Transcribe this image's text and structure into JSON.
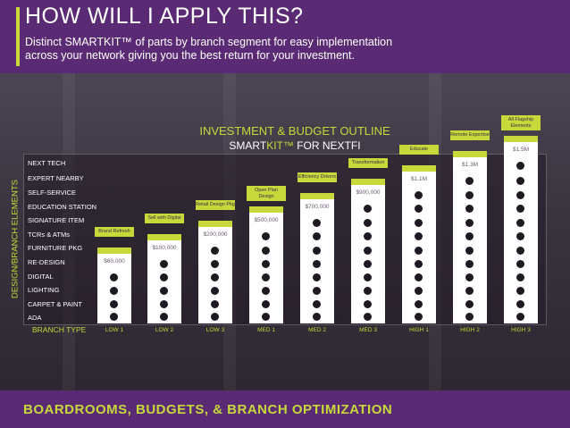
{
  "header": {
    "title": "HOW WILL I APPLY THIS?",
    "subtitle_line1": "Distinct SMARTKIT™ of parts by branch segment for easy implementation",
    "subtitle_line2": "across your network giving you the best return for your investment."
  },
  "outline": {
    "title": "INVESTMENT & BUDGET OUTLINE",
    "subtitle_prefix": "SMART",
    "subtitle_highlight": "KIT™",
    "subtitle_suffix": " FOR NEXTFI"
  },
  "axis_label": "DESIGN/BRANCH ELEMENTS",
  "branch_type_label": "BRANCH TYPE",
  "rows": [
    "NEXT TECH",
    "EXPERT NEARBY",
    "SELF-SERVICE",
    "EDUCATION STATION",
    "SIGNATURE ITEM",
    "TCRs & ATMs",
    "FURNITURE PKG",
    "RE-DESIGN",
    "DIGITAL",
    "LIGHTING",
    "CARPET & PAINT",
    "ADA"
  ],
  "columns": [
    {
      "label": "LOW 1",
      "amount": "$60,000",
      "tag": "Brand Refresh",
      "levels": 4
    },
    {
      "label": "LOW 2",
      "amount": "$100,000",
      "tag": "Sell with Digital",
      "levels": 5
    },
    {
      "label": "LOW 3",
      "amount": "$200,000",
      "tag": "Retail Design Pkg",
      "levels": 6
    },
    {
      "label": "MED 1",
      "amount": "$500,000",
      "tag": "Open Plan Design",
      "levels": 7
    },
    {
      "label": "MED 2",
      "amount": "$700,000",
      "tag": "Efficiency Drivers",
      "levels": 8
    },
    {
      "label": "MED 3",
      "amount": "$900,000",
      "tag": "Transformation",
      "levels": 9
    },
    {
      "label": "HIGH 1",
      "amount": "$1.1M",
      "tag": "Educate",
      "levels": 10
    },
    {
      "label": "HIGH 2",
      "amount": "$1.3M",
      "tag": "Remote Expertise",
      "levels": 11
    },
    {
      "label": "HIGH 3",
      "amount": "$1.5M",
      "tag": "All Flagship Elements",
      "levels": 12
    }
  ],
  "footer": "BOARDROOMS, BUDGETS, & BRANCH OPTIMIZATION",
  "colors": {
    "accent": "#c7d93a",
    "brand": "#5a2a74"
  }
}
